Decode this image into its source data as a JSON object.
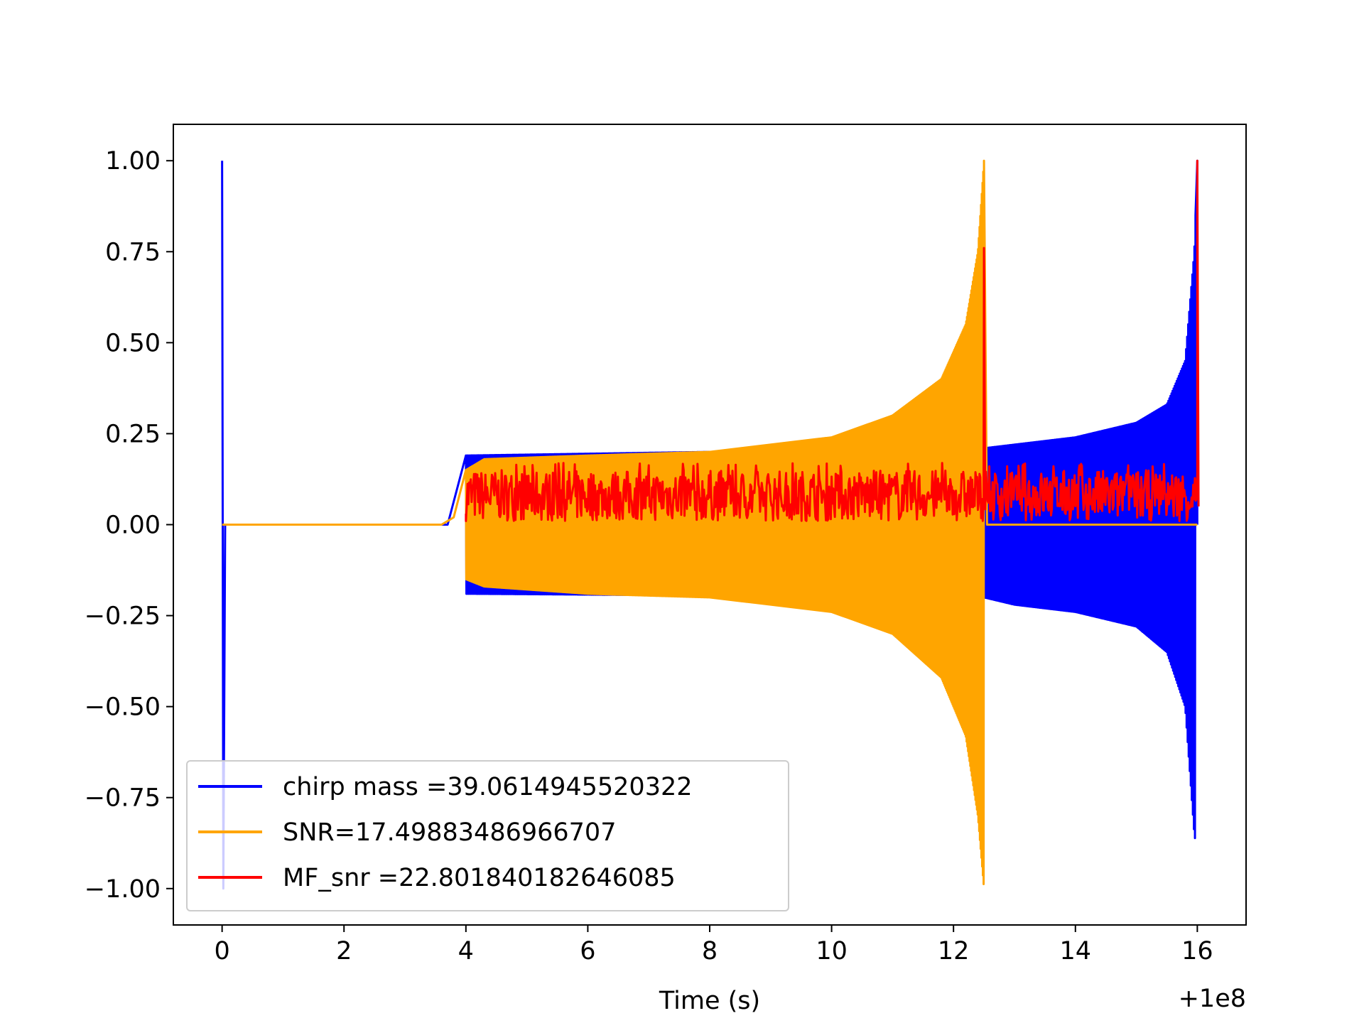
{
  "chart_data": {
    "type": "line",
    "title": "",
    "xlabel": "Time (s)",
    "ylabel": "",
    "x_offset_label": "+1e8",
    "xlim": [
      -0.8,
      16.8
    ],
    "ylim": [
      -1.1,
      1.1
    ],
    "xticks": [
      0,
      2,
      4,
      6,
      8,
      10,
      12,
      14,
      16
    ],
    "xtick_labels": [
      "0",
      "2",
      "4",
      "6",
      "8",
      "10",
      "12",
      "14",
      "16"
    ],
    "yticks": [
      1.0,
      0.75,
      0.5,
      0.25,
      0.0,
      -0.25,
      -0.5,
      -0.75,
      -1.0
    ],
    "ytick_labels": [
      "1.00",
      "0.75",
      "0.50",
      "0.25",
      "0.00",
      "−0.25",
      "−0.50",
      "−0.75",
      "−1.00"
    ],
    "grid": false,
    "legend_position": "lower-left",
    "series": [
      {
        "name": "chirp mass =39.0614945520322",
        "color": "#0000ff",
        "kind": "chirp",
        "points": [
          [
            0.0,
            1.0
          ],
          [
            0.02,
            -1.0
          ],
          [
            0.05,
            0.0
          ],
          [
            3.7,
            0.0
          ],
          [
            4.0,
            0.19
          ],
          [
            8.0,
            0.2
          ],
          [
            12.5,
            0.21
          ],
          [
            13.0,
            0.22
          ],
          [
            14.0,
            0.24
          ],
          [
            15.0,
            0.28
          ],
          [
            15.5,
            0.33
          ],
          [
            15.8,
            0.45
          ],
          [
            15.95,
            0.75
          ],
          [
            16.0,
            1.0
          ],
          [
            16.0,
            0.0
          ]
        ],
        "neg_envelope": [
          [
            4.0,
            -0.19
          ],
          [
            12.5,
            -0.2
          ],
          [
            13.0,
            -0.22
          ],
          [
            14.0,
            -0.24
          ],
          [
            15.0,
            -0.28
          ],
          [
            15.5,
            -0.35
          ],
          [
            15.8,
            -0.5
          ],
          [
            15.95,
            -0.85
          ],
          [
            15.97,
            -0.87
          ]
        ]
      },
      {
        "name": "SNR=17.49883486966707",
        "color": "#ffa500",
        "kind": "chirp",
        "points": [
          [
            0.0,
            0.0
          ],
          [
            3.6,
            0.0
          ],
          [
            3.8,
            0.02
          ],
          [
            4.0,
            0.15
          ],
          [
            4.3,
            0.18
          ],
          [
            6.0,
            0.19
          ],
          [
            8.0,
            0.2
          ],
          [
            10.0,
            0.24
          ],
          [
            11.0,
            0.3
          ],
          [
            11.8,
            0.4
          ],
          [
            12.2,
            0.55
          ],
          [
            12.4,
            0.75
          ],
          [
            12.5,
            1.0
          ],
          [
            12.55,
            0.0
          ],
          [
            16.0,
            0.0
          ]
        ],
        "neg_envelope": [
          [
            4.0,
            -0.15
          ],
          [
            4.3,
            -0.17
          ],
          [
            6.0,
            -0.19
          ],
          [
            8.0,
            -0.2
          ],
          [
            10.0,
            -0.24
          ],
          [
            11.0,
            -0.3
          ],
          [
            11.8,
            -0.42
          ],
          [
            12.2,
            -0.58
          ],
          [
            12.4,
            -0.8
          ],
          [
            12.5,
            -1.0
          ]
        ]
      },
      {
        "name": "MF_snr =22.801840182646085",
        "color": "#ff0000",
        "kind": "noise",
        "points": [
          [
            4.0,
            0.05
          ],
          [
            6.0,
            0.05
          ],
          [
            8.0,
            0.05
          ],
          [
            10.0,
            0.05
          ],
          [
            12.4,
            0.05
          ],
          [
            12.5,
            0.76
          ],
          [
            12.52,
            0.05
          ],
          [
            15.9,
            0.05
          ],
          [
            16.0,
            1.0
          ],
          [
            16.0,
            0.05
          ]
        ],
        "noise_band": [
          0.0,
          0.17
        ]
      }
    ]
  }
}
